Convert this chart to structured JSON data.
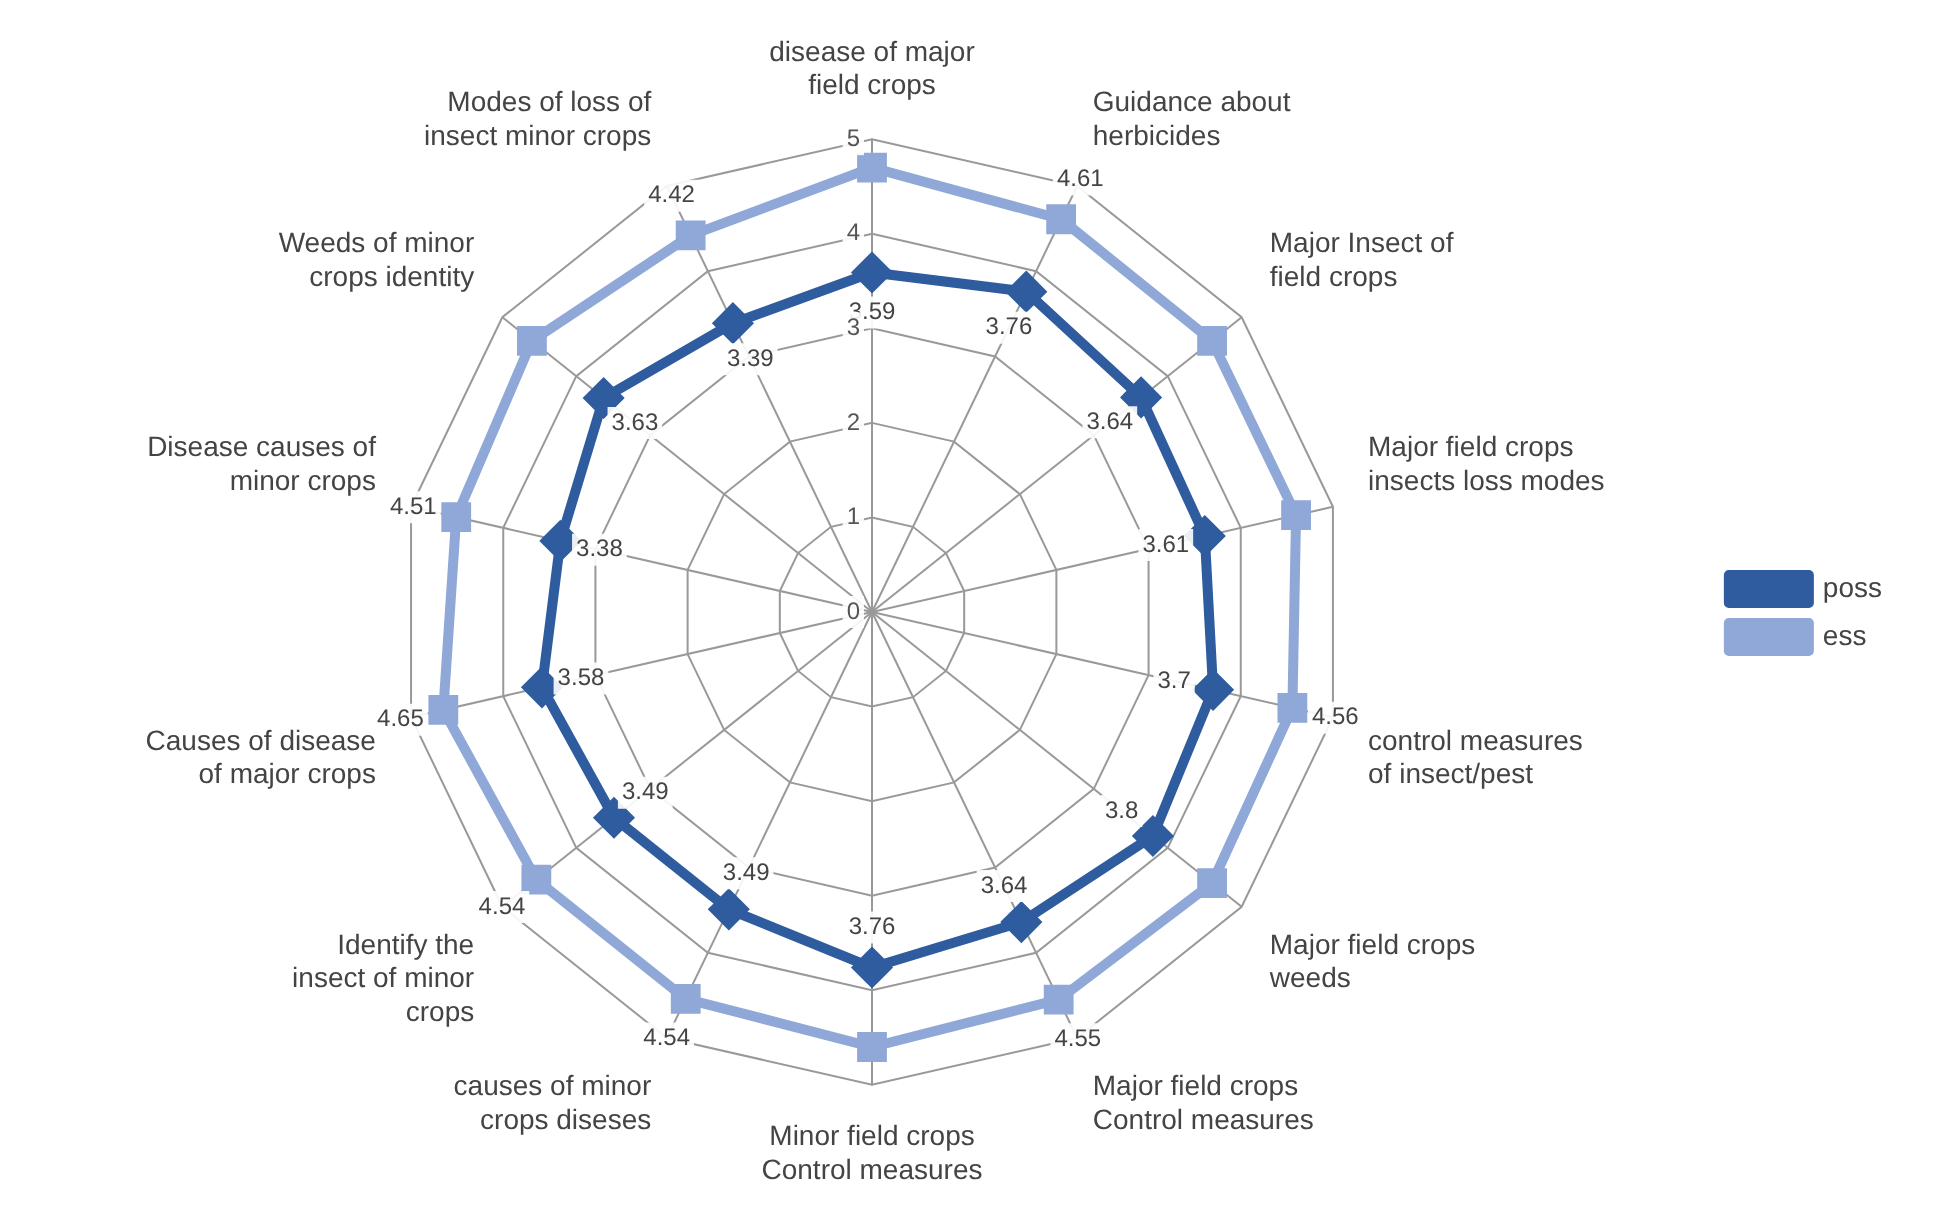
{
  "chart_data": {
    "type": "radar",
    "categories": [
      "disease of major field crops",
      "Guidance about herbicides",
      "Major Insect of field crops",
      "Major field crops insects loss modes",
      "control measures of insect/pest",
      "Major field crops weeds",
      "Major field crops Control measures",
      "Minor field crops Control measures",
      "causes of minor crops diseses",
      "Identify the insect of minor crops",
      "Causes of disease of major crops",
      "Disease causes of minor crops",
      "Weeds of minor crops identity",
      "Modes of loss of insect minor crops"
    ],
    "series": [
      {
        "name": "poss",
        "color": "#2e5c9e",
        "marker": "diamond",
        "values": [
          3.59,
          3.76,
          3.64,
          3.61,
          3.7,
          3.8,
          3.64,
          3.76,
          3.49,
          3.49,
          3.58,
          3.38,
          3.63,
          3.39
        ],
        "value_labels": [
          "3.59",
          "3.76",
          "3.64",
          "3.61",
          "3.7",
          "3.8",
          "3.64",
          "3.76",
          "3.49",
          "3.49",
          "3.58",
          "3.38",
          "3.63",
          "3.39"
        ]
      },
      {
        "name": "ess",
        "color": "#8fa8d8",
        "marker": "square",
        "values": [
          4.7,
          4.61,
          4.6,
          4.6,
          4.56,
          4.6,
          4.55,
          4.6,
          4.54,
          4.54,
          4.65,
          4.51,
          4.6,
          4.42
        ],
        "value_labels": [
          null,
          "4.61",
          null,
          null,
          "4.56",
          null,
          "4.55",
          null,
          "4.54",
          "4.54",
          "4.65",
          "4.51",
          null,
          "4.42"
        ]
      }
    ],
    "ylim": [
      0,
      5
    ],
    "yticks": [
      0,
      1,
      2,
      3,
      4,
      5
    ],
    "grid": true,
    "legend": "right"
  }
}
